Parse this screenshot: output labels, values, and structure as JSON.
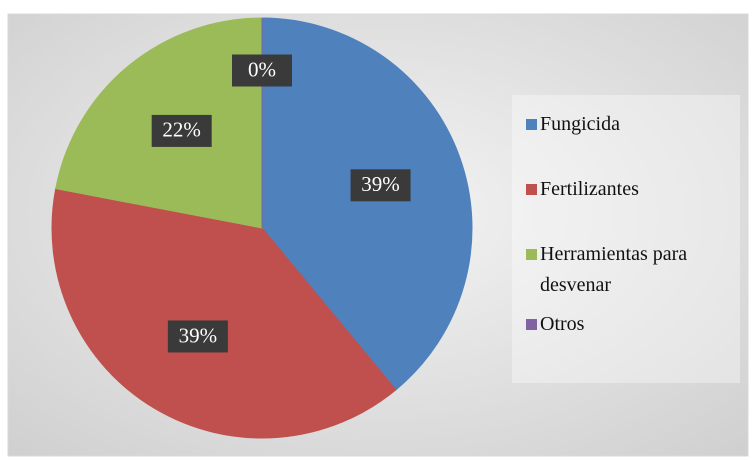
{
  "chart_data": {
    "type": "pie",
    "categories": [
      "Fungicida",
      "Fertilizantes",
      "Herramientas para desvenar",
      "Otros"
    ],
    "values": [
      39,
      39,
      22,
      0
    ],
    "value_labels": [
      "39%",
      "39%",
      "22%",
      "0%"
    ],
    "colors": [
      "#4f81bd",
      "#c0504d",
      "#9bbb59",
      "#8064a2"
    ],
    "legend": "right"
  }
}
